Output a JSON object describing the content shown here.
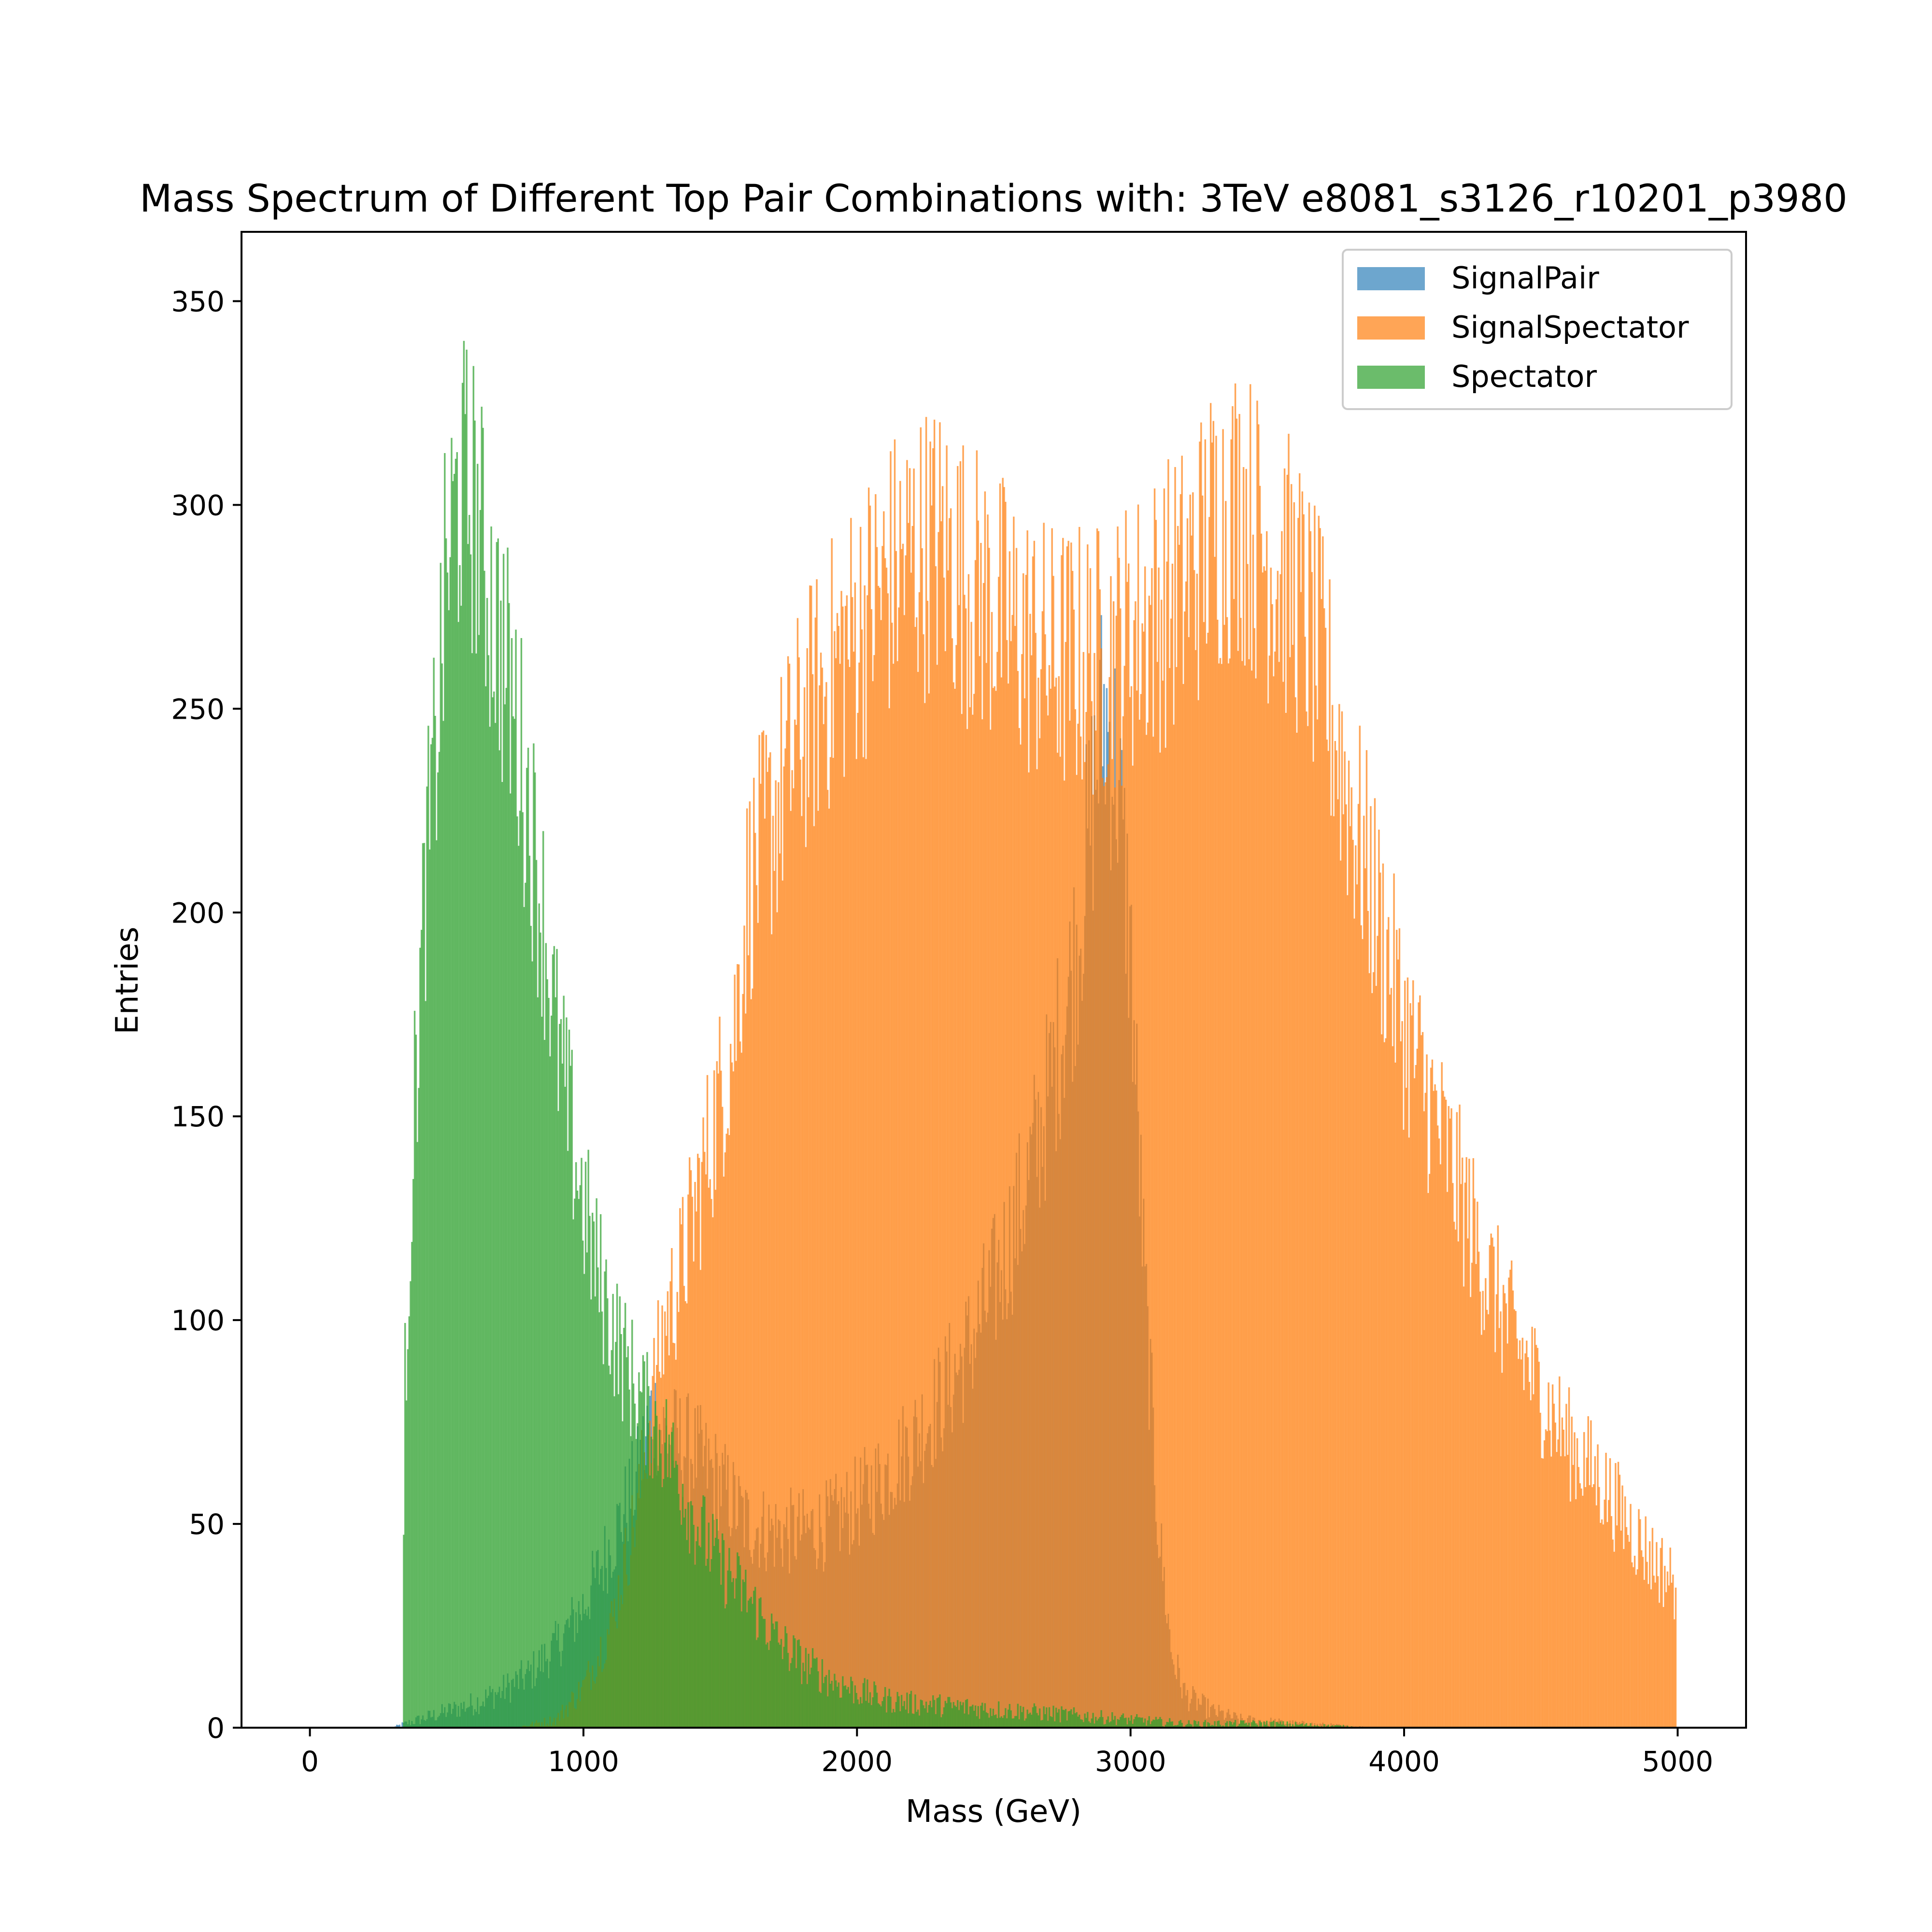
{
  "chart_data": {
    "type": "bar",
    "title": "Mass Spectrum of Different Top Pair Combinations with: 3TeV e8081_s3126_r10201_p3980",
    "xlabel": "Mass (GeV)",
    "ylabel": "Entries",
    "xlim": [
      -250,
      5250
    ],
    "ylim": [
      0,
      367
    ],
    "xticks": [
      0,
      1000,
      2000,
      3000,
      4000,
      5000
    ],
    "xtick_labels": [
      "0",
      "1000",
      "2000",
      "3000",
      "4000",
      "5000"
    ],
    "yticks": [
      0,
      50,
      100,
      150,
      200,
      250,
      300,
      350
    ],
    "ytick_labels": [
      "0",
      "50",
      "100",
      "150",
      "200",
      "250",
      "300",
      "350"
    ],
    "grid": false,
    "legend_position": "top-right",
    "bin_width": 5,
    "series": [
      {
        "name": "SignalPair",
        "color": "#1f77b4",
        "alpha": 0.65,
        "x": [
          300,
          400,
          500,
          600,
          700,
          800,
          900,
          1000,
          1100,
          1200,
          1250,
          1300,
          1400,
          1500,
          1600,
          1700,
          1800,
          1900,
          2000,
          2100,
          2200,
          2300,
          2400,
          2500,
          2600,
          2700,
          2800,
          2850,
          2900,
          2950,
          3000,
          3050,
          3100,
          3150,
          3200,
          3300,
          3400,
          3600,
          3900
        ],
        "y": [
          0,
          2,
          4,
          6,
          9,
          13,
          20,
          30,
          45,
          62,
          78,
          72,
          68,
          60,
          50,
          48,
          48,
          50,
          55,
          62,
          70,
          80,
          92,
          108,
          128,
          155,
          190,
          220,
          250,
          235,
          190,
          110,
          50,
          18,
          8,
          4,
          2,
          1,
          0
        ]
      },
      {
        "name": "SignalSpectator",
        "color": "#ff7f0e",
        "alpha": 0.7,
        "x": [
          750,
          900,
          1000,
          1100,
          1200,
          1250,
          1300,
          1350,
          1400,
          1500,
          1550,
          1600,
          1700,
          1800,
          1900,
          2000,
          2100,
          2200,
          2300,
          2400,
          2500,
          2600,
          2700,
          2800,
          2900,
          3000,
          3100,
          3200,
          3300,
          3400,
          3500,
          3600,
          3700,
          3800,
          3900,
          4000,
          4100,
          4200,
          4300,
          4400,
          4500,
          4600,
          4700,
          4800,
          4900,
          4995
        ],
        "y": [
          0,
          2,
          10,
          25,
          55,
          80,
          100,
          110,
          125,
          155,
          170,
          205,
          225,
          245,
          258,
          270,
          280,
          288,
          290,
          282,
          275,
          268,
          262,
          262,
          262,
          268,
          275,
          280,
          295,
          300,
          288,
          280,
          260,
          228,
          200,
          172,
          152,
          132,
          112,
          96,
          82,
          70,
          62,
          52,
          42,
          35
        ]
      },
      {
        "name": "Spectator",
        "color": "#2ca02c",
        "alpha": 0.7,
        "x": [
          340,
          345,
          380,
          420,
          460,
          500,
          550,
          600,
          650,
          700,
          750,
          800,
          850,
          900,
          950,
          1000,
          1050,
          1100,
          1150,
          1200,
          1250,
          1300,
          1350,
          1400,
          1500,
          1600,
          1700,
          1800,
          1900,
          2000,
          2100,
          2200,
          2400,
          2600,
          2800,
          3000,
          3200,
          3500,
          3900,
          4000
        ],
        "y": [
          0,
          80,
          150,
          205,
          240,
          285,
          305,
          300,
          280,
          265,
          248,
          225,
          200,
          170,
          148,
          128,
          112,
          100,
          90,
          82,
          75,
          70,
          62,
          52,
          40,
          32,
          22,
          16,
          12,
          9,
          7,
          6,
          5,
          4,
          3,
          2,
          1,
          1,
          0,
          0
        ]
      }
    ]
  }
}
